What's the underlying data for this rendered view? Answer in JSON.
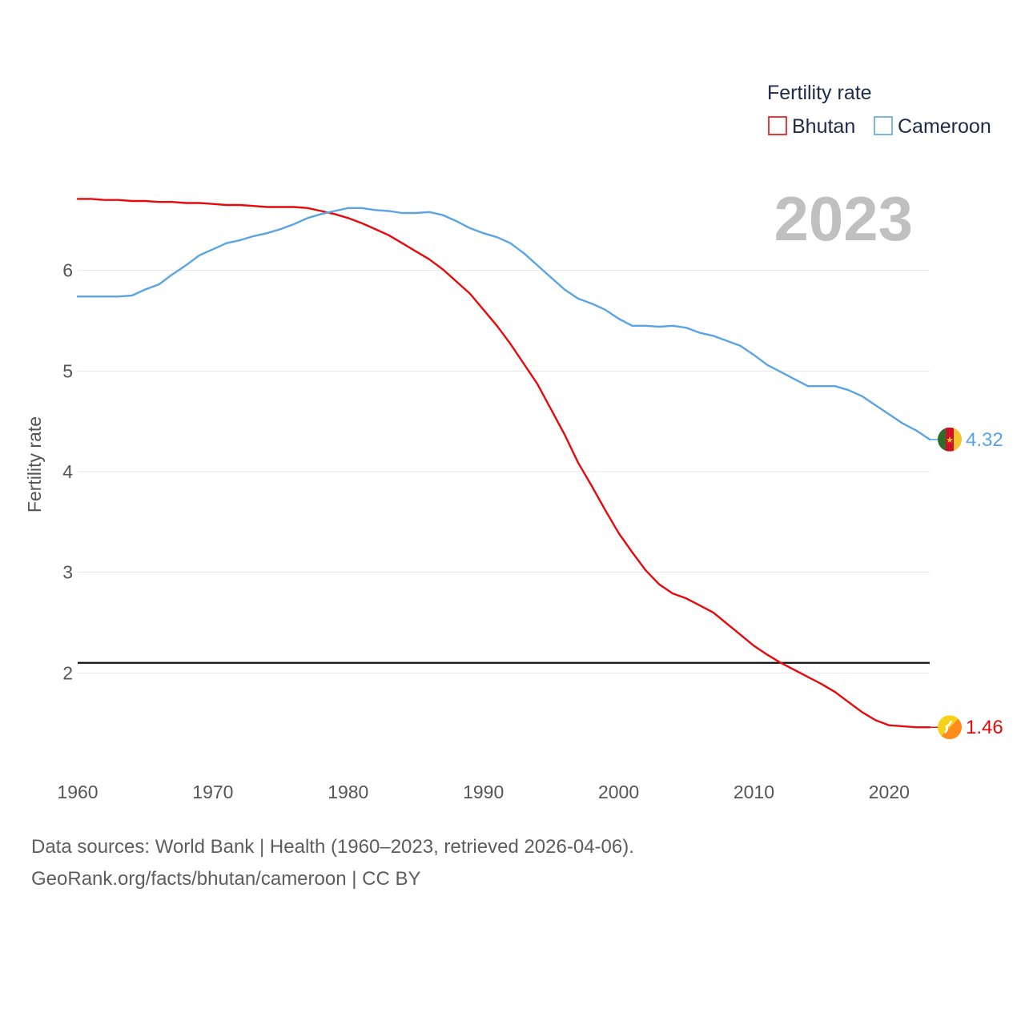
{
  "chart_data": {
    "type": "line",
    "title": "",
    "legend_title": "Fertility rate",
    "ylabel": "Fertility rate",
    "xlabel": "",
    "current_year": "2023",
    "xlim": [
      1960,
      2023
    ],
    "ylim": [
      1,
      7
    ],
    "yticks": [
      2,
      3,
      4,
      5,
      6
    ],
    "xticks": [
      1960,
      1970,
      1980,
      1990,
      2000,
      2010,
      2020
    ],
    "reference_line": 2.1,
    "grid": true,
    "legend_position": "top-right",
    "x": [
      1960,
      1961,
      1962,
      1963,
      1964,
      1965,
      1966,
      1967,
      1968,
      1969,
      1970,
      1971,
      1972,
      1973,
      1974,
      1975,
      1976,
      1977,
      1978,
      1979,
      1980,
      1981,
      1982,
      1983,
      1984,
      1985,
      1986,
      1987,
      1988,
      1989,
      1990,
      1991,
      1992,
      1993,
      1994,
      1995,
      1996,
      1997,
      1998,
      1999,
      2000,
      2001,
      2002,
      2003,
      2004,
      2005,
      2006,
      2007,
      2008,
      2009,
      2010,
      2011,
      2012,
      2013,
      2014,
      2015,
      2016,
      2017,
      2018,
      2019,
      2020,
      2021,
      2022,
      2023
    ],
    "series": [
      {
        "name": "Bhutan",
        "color": "#e8090b",
        "flag_icon": "bhutan-flag-icon",
        "end_label": "1.46",
        "values": [
          6.71,
          6.71,
          6.7,
          6.7,
          6.69,
          6.69,
          6.68,
          6.68,
          6.67,
          6.67,
          6.66,
          6.65,
          6.65,
          6.64,
          6.63,
          6.63,
          6.63,
          6.62,
          6.59,
          6.56,
          6.52,
          6.47,
          6.41,
          6.35,
          6.27,
          6.19,
          6.11,
          6.01,
          5.89,
          5.77,
          5.61,
          5.45,
          5.27,
          5.07,
          4.87,
          4.62,
          4.37,
          4.09,
          3.86,
          3.62,
          3.39,
          3.2,
          3.02,
          2.88,
          2.79,
          2.74,
          2.67,
          2.6,
          2.49,
          2.38,
          2.27,
          2.18,
          2.1,
          2.03,
          1.96,
          1.89,
          1.81,
          1.71,
          1.61,
          1.53,
          1.48,
          1.47,
          1.46,
          1.46
        ]
      },
      {
        "name": "Cameroon",
        "color": "#5aa4e4",
        "flag_icon": "cameroon-flag-icon",
        "end_label": "4.32",
        "values": [
          5.74,
          5.74,
          5.74,
          5.74,
          5.75,
          5.81,
          5.86,
          5.96,
          6.05,
          6.15,
          6.21,
          6.27,
          6.3,
          6.34,
          6.37,
          6.41,
          6.46,
          6.52,
          6.56,
          6.59,
          6.62,
          6.62,
          6.6,
          6.59,
          6.57,
          6.57,
          6.58,
          6.55,
          6.49,
          6.42,
          6.37,
          6.33,
          6.27,
          6.17,
          6.05,
          5.93,
          5.81,
          5.72,
          5.67,
          5.61,
          5.52,
          5.45,
          5.45,
          5.44,
          5.45,
          5.43,
          5.38,
          5.35,
          5.3,
          5.25,
          5.16,
          5.06,
          4.99,
          4.92,
          4.85,
          4.85,
          4.85,
          4.81,
          4.75,
          4.66,
          4.57,
          4.48,
          4.41,
          4.32
        ]
      }
    ]
  },
  "footer": {
    "sources": "Data sources: World Bank | Health (1960–2023, retrieved 2026-04-06).",
    "attribution": "GeoRank.org/facts/bhutan/cameroon | CC BY"
  }
}
